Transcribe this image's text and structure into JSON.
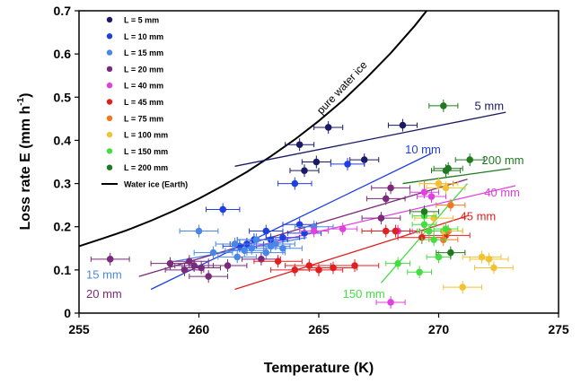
{
  "chart_data": {
    "type": "scatter",
    "xlabel": "Temperature (K)",
    "ylabel": "Loss rate E (mm h",
    "ylabel_sup": "-1",
    "ylabel_end": ")",
    "xlim": [
      255,
      275
    ],
    "ylim": [
      0,
      0.7
    ],
    "xticks": [
      255,
      260,
      265,
      270,
      275
    ],
    "yticks": [
      0,
      0.1,
      0.2,
      0.3,
      0.4,
      0.5,
      0.6,
      0.7
    ],
    "grid": false,
    "legend_position": "top-left",
    "legend": [
      {
        "label": "L = 5 mm",
        "color": "#1a1a66"
      },
      {
        "label": "L = 10 mm",
        "color": "#1f3fe0"
      },
      {
        "label": "L = 15 mm",
        "color": "#4a86e8"
      },
      {
        "label": "L = 20 mm",
        "color": "#7a2a7a"
      },
      {
        "label": "L = 40 mm",
        "color": "#e040e0"
      },
      {
        "label": "L = 45 mm",
        "color": "#e02020"
      },
      {
        "label": "L = 75 mm",
        "color": "#f07820"
      },
      {
        "label": "L = 100 mm",
        "color": "#f2c233"
      },
      {
        "label": "L = 150 mm",
        "color": "#44dd44"
      },
      {
        "label": "L = 200 mm",
        "color": "#1f7a1f"
      },
      {
        "label": "Water ice (Earth)",
        "color": "#000000",
        "line": true
      }
    ],
    "series": [
      {
        "name": "L = 5 mm",
        "color": "#1a1a66",
        "points": [
          [
            264.2,
            0.39
          ],
          [
            265.4,
            0.43
          ],
          [
            268.5,
            0.435
          ],
          [
            264.9,
            0.35
          ],
          [
            264.4,
            0.33
          ],
          [
            266.9,
            0.355
          ]
        ],
        "xerr": 0.6,
        "fit": {
          "x": [
            261.5,
            272.8
          ],
          "y": [
            0.34,
            0.465
          ],
          "label": "5 mm",
          "label_at": [
            271.5,
            0.47
          ]
        }
      },
      {
        "name": "L = 10 mm",
        "color": "#1f3fe0",
        "points": [
          [
            261.0,
            0.24
          ],
          [
            264.0,
            0.3
          ],
          [
            266.2,
            0.345
          ],
          [
            262.8,
            0.19
          ],
          [
            264.2,
            0.205
          ],
          [
            264.4,
            0.185
          ],
          [
            262.3,
            0.17
          ],
          [
            263.0,
            0.17
          ],
          [
            262.0,
            0.16
          ],
          [
            261.7,
            0.155
          ],
          [
            263.5,
            0.175
          ]
        ],
        "xerr": 0.7,
        "fit": {
          "x": [
            258.0,
            269.7
          ],
          "y": [
            0.055,
            0.37
          ],
          "label": "10 mm",
          "label_at": [
            268.6,
            0.37
          ]
        }
      },
      {
        "name": "L = 15 mm",
        "color": "#4a86e8",
        "points": [
          [
            260.0,
            0.19
          ],
          [
            261.5,
            0.16
          ],
          [
            262.2,
            0.15
          ],
          [
            261.6,
            0.13
          ],
          [
            262.8,
            0.14
          ],
          [
            263.5,
            0.15
          ],
          [
            264.8,
            0.2
          ],
          [
            260.6,
            0.14
          ],
          [
            262.4,
            0.17
          ],
          [
            263.2,
            0.16
          ],
          [
            261.9,
            0.145
          ],
          [
            263.0,
            0.155
          ]
        ],
        "xerr": 0.8,
        "fit": {
          "x": [
            259.0,
            264.5
          ],
          "y": [
            0.12,
            0.175
          ],
          "label": "15 mm",
          "label_at": [
            255.3,
            0.08
          ]
        }
      },
      {
        "name": "L = 20 mm",
        "color": "#7a2a7a",
        "points": [
          [
            256.3,
            0.125
          ],
          [
            258.8,
            0.115
          ],
          [
            259.6,
            0.12
          ],
          [
            260.1,
            0.105
          ],
          [
            259.4,
            0.1
          ],
          [
            260.4,
            0.085
          ],
          [
            261.2,
            0.11
          ],
          [
            262.6,
            0.125
          ],
          [
            267.6,
            0.22
          ],
          [
            268.0,
            0.29
          ],
          [
            267.8,
            0.265
          ],
          [
            259.8,
            0.11
          ]
        ],
        "xerr": 0.8,
        "fit": {
          "x": [
            257.5,
            271.2
          ],
          "y": [
            0.085,
            0.31
          ],
          "label": "20 mm",
          "label_at": [
            255.3,
            0.035
          ]
        }
      },
      {
        "name": "L = 40 mm",
        "color": "#e040e0",
        "points": [
          [
            264.8,
            0.19
          ],
          [
            266.0,
            0.195
          ],
          [
            268.0,
            0.025
          ],
          [
            269.4,
            0.28
          ],
          [
            269.7,
            0.27
          ],
          [
            268.3,
            0.19
          ]
        ],
        "xerr": 0.6,
        "fit": {
          "x": [
            262.0,
            273.2
          ],
          "y": [
            0.15,
            0.295
          ],
          "label": "40 mm",
          "label_at": [
            271.9,
            0.27
          ]
        }
      },
      {
        "name": "L = 45 mm",
        "color": "#e02020",
        "points": [
          [
            263.3,
            0.12
          ],
          [
            264.0,
            0.1
          ],
          [
            265.0,
            0.1
          ],
          [
            265.6,
            0.105
          ],
          [
            266.5,
            0.11
          ],
          [
            267.8,
            0.19
          ],
          [
            268.2,
            0.19
          ],
          [
            269.3,
            0.175
          ],
          [
            270.3,
            0.18
          ],
          [
            264.6,
            0.11
          ]
        ],
        "xerr": 1.0,
        "fit": {
          "x": [
            261.5,
            271.2
          ],
          "y": [
            0.055,
            0.225
          ],
          "label": "45 mm",
          "label_at": [
            270.9,
            0.215
          ]
        }
      },
      {
        "name": "L = 75 mm",
        "color": "#f07820",
        "points": [
          [
            270.0,
            0.3
          ],
          [
            270.5,
            0.25
          ],
          [
            270.4,
            0.19
          ],
          [
            270.2,
            0.17
          ]
        ],
        "xerr": 0.6
      },
      {
        "name": "L = 100 mm",
        "color": "#f2c233",
        "points": [
          [
            270.0,
            0.3
          ],
          [
            270.3,
            0.29
          ],
          [
            271.8,
            0.13
          ],
          [
            272.1,
            0.125
          ],
          [
            272.3,
            0.105
          ],
          [
            271.0,
            0.06
          ],
          [
            269.8,
            0.22
          ],
          [
            270.2,
            0.19
          ]
        ],
        "xerr": 0.8
      },
      {
        "name": "L = 150 mm",
        "color": "#44dd44",
        "points": [
          [
            268.3,
            0.115
          ],
          [
            269.2,
            0.095
          ],
          [
            269.4,
            0.205
          ],
          [
            269.6,
            0.19
          ],
          [
            269.8,
            0.17
          ],
          [
            270.3,
            0.195
          ],
          [
            270.0,
            0.13
          ],
          [
            269.4,
            0.225
          ]
        ],
        "xerr": 0.5,
        "fit": {
          "x": [
            267.6,
            271.2
          ],
          "y": [
            0.07,
            0.3
          ],
          "label": "150 mm",
          "label_at": [
            266.0,
            0.035
          ]
        }
      },
      {
        "name": "L = 200 mm",
        "color": "#1f7a1f",
        "points": [
          [
            270.2,
            0.48
          ],
          [
            271.3,
            0.355
          ],
          [
            270.4,
            0.335
          ],
          [
            270.3,
            0.33
          ],
          [
            270.5,
            0.14
          ],
          [
            269.4,
            0.235
          ]
        ],
        "xerr": 0.6,
        "fit": {
          "x": [
            268.5,
            273.0
          ],
          "y": [
            0.3,
            0.335
          ],
          "label": "200 mm",
          "label_at": [
            271.8,
            0.345
          ]
        }
      }
    ],
    "water_ice_curve": {
      "label": "pure water ice",
      "x": [
        255,
        256,
        257,
        258,
        259,
        260,
        261,
        262,
        263,
        264,
        265,
        266,
        267,
        268,
        269,
        269.5
      ],
      "y": [
        0.155,
        0.173,
        0.192,
        0.214,
        0.238,
        0.265,
        0.295,
        0.327,
        0.363,
        0.402,
        0.445,
        0.492,
        0.545,
        0.602,
        0.665,
        0.7
      ]
    }
  }
}
